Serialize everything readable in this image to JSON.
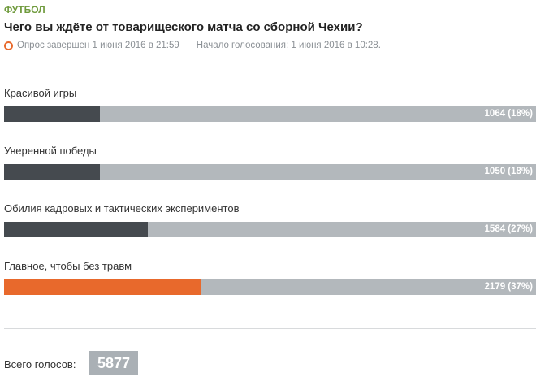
{
  "category": "ФУТБОЛ",
  "title": "Чего вы ждёте от товарищеского матча со сборной Чехии?",
  "status": "Опрос завершен 1 июня 2016 в 21:59",
  "start": "Начало голосования: 1 июня 2016 в 10:28.",
  "options": [
    {
      "label": "Красивой игры",
      "percent": 18,
      "value_label": "1064 (18%)",
      "color": "#454a4f"
    },
    {
      "label": "Уверенной победы",
      "percent": 18,
      "value_label": "1050 (18%)",
      "color": "#454a4f"
    },
    {
      "label": "Обилия кадровых и тактических экспериментов",
      "percent": 27,
      "value_label": "1584 (27%)",
      "color": "#454a4f"
    },
    {
      "label": "Главное, чтобы без травм",
      "percent": 37,
      "value_label": "2179 (37%)",
      "color": "#e8692c"
    }
  ],
  "total_label": "Всего голосов:",
  "total": 5877
}
